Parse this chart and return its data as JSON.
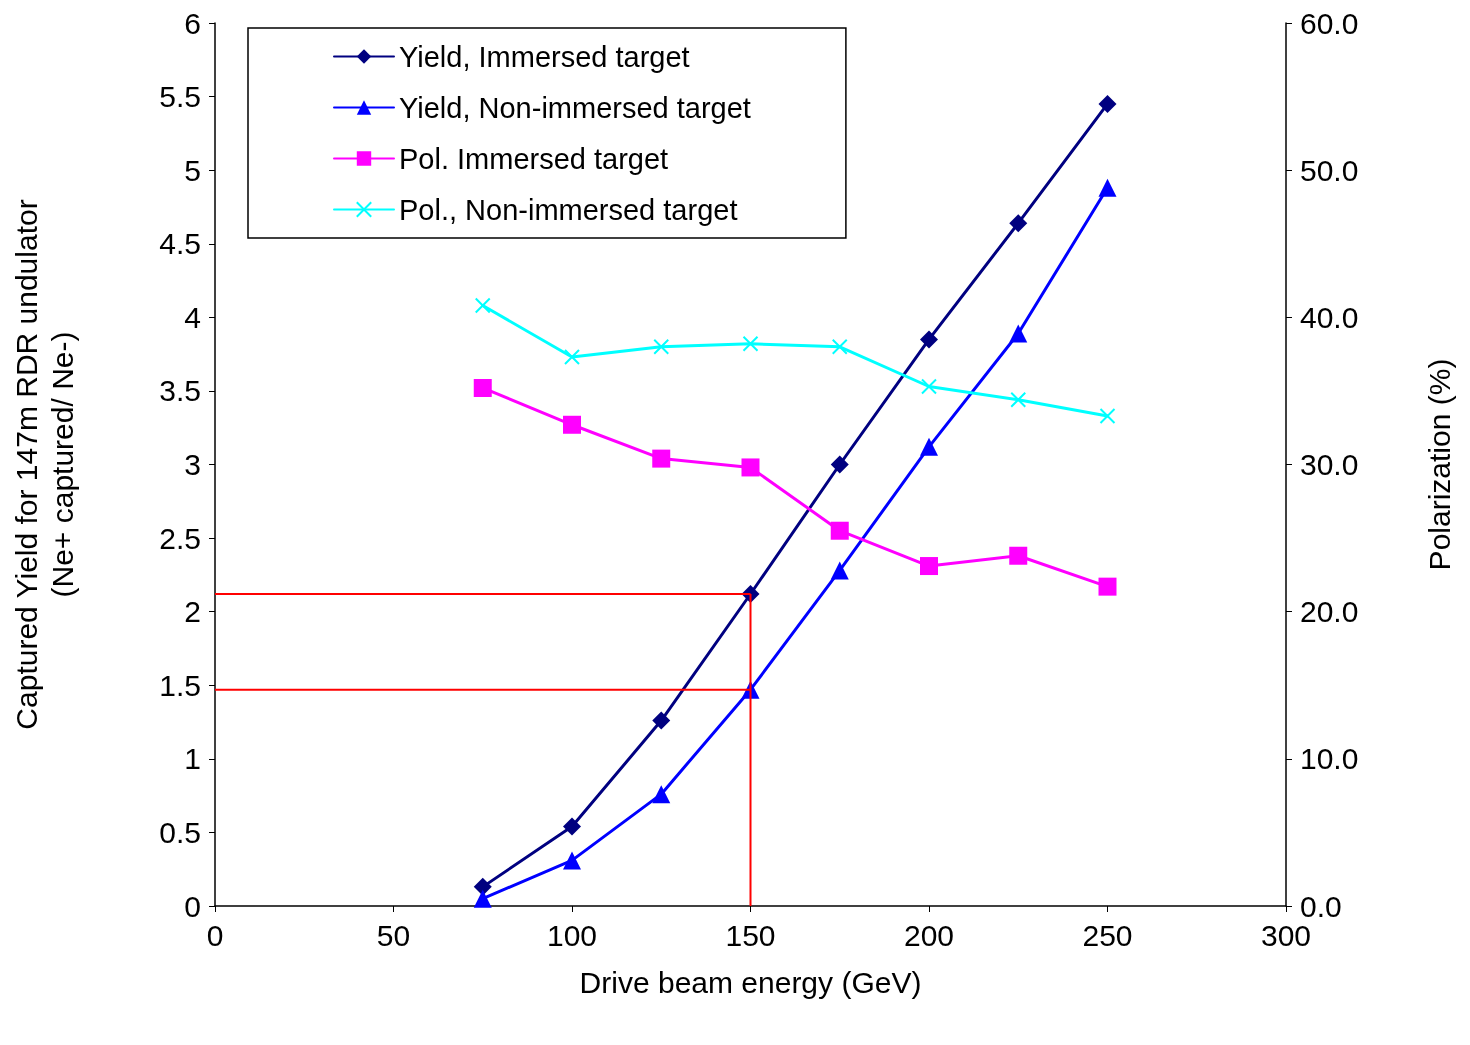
{
  "chart_data": {
    "type": "line",
    "xlabel": "Drive beam energy (GeV)",
    "ylabel": "Captured Yield for 147m RDR undulator\n(Ne+ captured/ Ne-)",
    "y2label": "Polarization (%)",
    "x": [
      75,
      100,
      125,
      150,
      175,
      200,
      225,
      250
    ],
    "xlim": [
      0,
      300
    ],
    "xticks": [
      0,
      50,
      100,
      150,
      200,
      250,
      300
    ],
    "ylim": [
      0,
      6
    ],
    "yticks": [
      0,
      0.5,
      1,
      1.5,
      2,
      2.5,
      3,
      3.5,
      4,
      4.5,
      5,
      5.5,
      6
    ],
    "y2lim": [
      0,
      60
    ],
    "y2ticks": [
      {
        "value": 0,
        "label": "0.0"
      },
      {
        "value": 10,
        "label": "10.0"
      },
      {
        "value": 20,
        "label": "20.0"
      },
      {
        "value": 30,
        "label": "30.0"
      },
      {
        "value": 40,
        "label": "40.0"
      },
      {
        "value": 50,
        "label": "50.0"
      },
      {
        "value": 60,
        "label": "60.0"
      }
    ],
    "grid": false,
    "legend": "top left",
    "series": [
      {
        "name": "Yield, Immersed target",
        "color": "#000080",
        "marker": "diamond",
        "values": [
          0.13,
          0.54,
          1.26,
          2.12,
          3.0,
          3.85,
          4.64,
          5.45
        ]
      },
      {
        "name": "Yield, Non-immersed target",
        "color": "#0000ff",
        "marker": "triangle",
        "values": [
          0.05,
          0.31,
          0.76,
          1.47,
          2.28,
          3.12,
          3.89,
          4.88
        ]
      },
      {
        "name": "Pol. Immersed target",
        "color": "#ff00ff",
        "marker": "square",
        "axis": "y2",
        "values": [
          35.2,
          32.7,
          30.4,
          29.8,
          25.5,
          23.1,
          23.8,
          21.7
        ]
      },
      {
        "name": "Pol., Non-immersed target",
        "color": "#00ffff",
        "marker": "cross",
        "axis": "y2",
        "values": [
          40.8,
          37.3,
          38.0,
          38.2,
          38.0,
          35.3,
          34.4,
          33.3
        ]
      }
    ],
    "ref_lines": [
      {
        "axis": "y",
        "value": 2.12,
        "color": "#ff0000"
      },
      {
        "axis": "y",
        "value": 1.47,
        "color": "#ff0000"
      },
      {
        "axis": "x",
        "value": 150,
        "color": "#ff0000"
      }
    ]
  }
}
